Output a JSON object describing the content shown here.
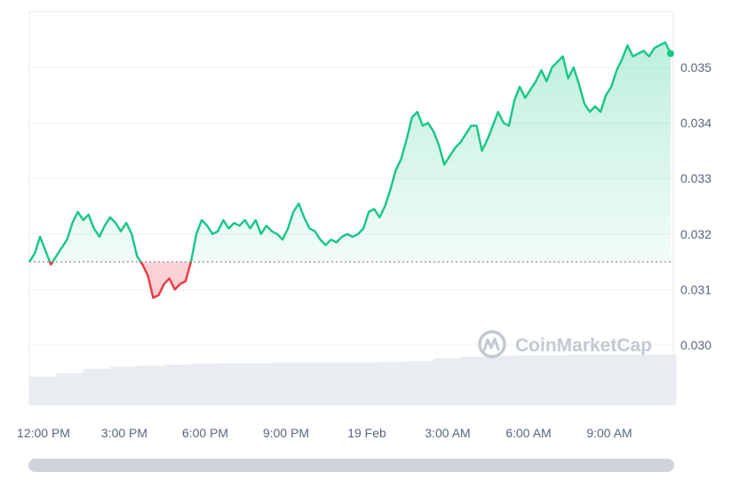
{
  "watermark": {
    "text": "CoinMarketCap",
    "icon": "coinmarketcap-logo-icon"
  },
  "colors": {
    "up": "#16c784",
    "down": "#ea3943",
    "grid": "#eff2f5",
    "volume": "#e9edf2",
    "axis_text": "#58667e",
    "scrollbar": "#d0d4da"
  },
  "chart_data": {
    "type": "line",
    "title": "",
    "xlabel": "",
    "ylabel": "",
    "baseline": 0.0315,
    "ylim": [
      0.0295,
      0.0357
    ],
    "yticks": [
      "0.030",
      "0.031",
      "0.032",
      "0.033",
      "0.034",
      "0.035"
    ],
    "ytick_values": [
      0.03,
      0.031,
      0.032,
      0.033,
      0.034,
      0.035
    ],
    "xticks": [
      "12:00 PM",
      "3:00 PM",
      "6:00 PM",
      "9:00 PM",
      "19 Feb",
      "3:00 AM",
      "6:00 AM",
      "9:00 AM"
    ],
    "xtick_hours": [
      0,
      3,
      6,
      9,
      12,
      15,
      18,
      21
    ],
    "xlim_hours": [
      0,
      23.9
    ],
    "grid": true,
    "legend": "none",
    "series": [
      {
        "x_hours": [
          0,
          0.2,
          0.4,
          0.6,
          0.8,
          1.0,
          1.2,
          1.4,
          1.6,
          1.8,
          2.0,
          2.2,
          2.4,
          2.6,
          2.8,
          3.0,
          3.2,
          3.4,
          3.6,
          3.8,
          4.0,
          4.2,
          4.4,
          4.6,
          4.8,
          5.0,
          5.2,
          5.4,
          5.6,
          5.8,
          6.0,
          6.2,
          6.4,
          6.6,
          6.8,
          7.0,
          7.2,
          7.4,
          7.6,
          7.8,
          8.0,
          8.2,
          8.4,
          8.6,
          8.8,
          9.0,
          9.2,
          9.4,
          9.6,
          9.8,
          10.0,
          10.2,
          10.4,
          10.6,
          10.8,
          11.0,
          11.2,
          11.4,
          11.6,
          11.8,
          12.0,
          12.2,
          12.4,
          12.6,
          12.8,
          13.0,
          13.2,
          13.4,
          13.6,
          13.8,
          14.0,
          14.2,
          14.4,
          14.6,
          14.8,
          15.0,
          15.2,
          15.4,
          15.6,
          15.8,
          16.0,
          16.2,
          16.4,
          16.6,
          16.8,
          17.0,
          17.2,
          17.4,
          17.6,
          17.8,
          18.0,
          18.2,
          18.4,
          18.6,
          18.8,
          19.0,
          19.2,
          19.4,
          19.6,
          19.8,
          20.0,
          20.2,
          20.4,
          20.6,
          20.8,
          21.0,
          21.2,
          21.4,
          21.6,
          21.8,
          22.0,
          22.2,
          22.4,
          22.6,
          22.8,
          23.0,
          23.2,
          23.4,
          23.6,
          23.8
        ],
        "values": [
          0.0315,
          0.03165,
          0.03195,
          0.0317,
          0.03145,
          0.0316,
          0.03175,
          0.0319,
          0.0322,
          0.0324,
          0.03225,
          0.03235,
          0.0321,
          0.03195,
          0.03215,
          0.0323,
          0.0322,
          0.03205,
          0.0322,
          0.032,
          0.0316,
          0.03145,
          0.03125,
          0.03085,
          0.0309,
          0.0311,
          0.0312,
          0.031,
          0.0311,
          0.03115,
          0.0315,
          0.032,
          0.03225,
          0.03215,
          0.032,
          0.03205,
          0.03225,
          0.0321,
          0.0322,
          0.03215,
          0.03225,
          0.0321,
          0.03225,
          0.032,
          0.03215,
          0.03205,
          0.032,
          0.0319,
          0.0321,
          0.0324,
          0.03255,
          0.0323,
          0.0321,
          0.03205,
          0.0319,
          0.0318,
          0.0319,
          0.03185,
          0.03195,
          0.032,
          0.03195,
          0.032,
          0.0321,
          0.0324,
          0.03245,
          0.0323,
          0.0325,
          0.0328,
          0.03315,
          0.03335,
          0.0337,
          0.0341,
          0.0342,
          0.03395,
          0.034,
          0.03385,
          0.0336,
          0.03325,
          0.0334,
          0.03355,
          0.03365,
          0.0338,
          0.03395,
          0.03395,
          0.0335,
          0.0337,
          0.03395,
          0.0342,
          0.034,
          0.03395,
          0.0344,
          0.03465,
          0.03445,
          0.0346,
          0.03475,
          0.03495,
          0.03475,
          0.035,
          0.0351,
          0.0352,
          0.0348,
          0.035,
          0.0347,
          0.03435,
          0.0342,
          0.0343,
          0.0342,
          0.0345,
          0.03465,
          0.03495,
          0.03515,
          0.0354,
          0.0352,
          0.03525,
          0.0353,
          0.0352,
          0.03535,
          0.0354,
          0.03545,
          0.03525
        ]
      }
    ],
    "volume": {
      "x_hours": [
        0,
        1,
        2,
        3,
        4,
        5,
        6,
        7,
        8,
        9,
        10,
        11,
        12,
        13,
        14,
        15,
        16,
        17,
        18,
        19,
        20,
        21,
        22,
        23
      ],
      "relative_levels": [
        0.55,
        0.62,
        0.7,
        0.74,
        0.76,
        0.78,
        0.8,
        0.81,
        0.81,
        0.82,
        0.82,
        0.82,
        0.82,
        0.83,
        0.85,
        0.9,
        0.93,
        0.95,
        0.96,
        0.96,
        0.97,
        0.97,
        0.97,
        0.97
      ]
    }
  }
}
